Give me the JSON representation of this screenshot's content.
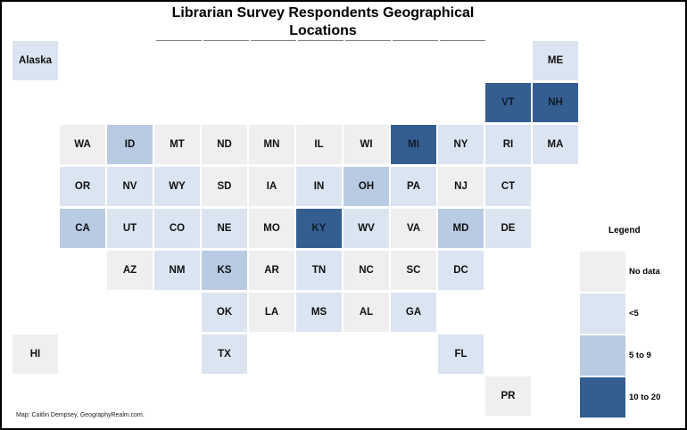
{
  "title": "Librarian Survey Respondents Geographical Locations",
  "title_line1": "Librarian Survey Respondents Geographical",
  "title_line2": "Locations",
  "credit": "Map: Caitlin Dempsey, GeographyRealm.com.",
  "legend": {
    "title": "Legend",
    "items": [
      {
        "label": "No data",
        "color": "#efefef"
      },
      {
        "label": "<5",
        "color": "#dbe4f1"
      },
      {
        "label": "5 to 9",
        "color": "#b8cbe3"
      },
      {
        "label": "10 to 20",
        "color": "#355e90"
      }
    ]
  },
  "chart_data": {
    "type": "heatmap",
    "title": "Librarian Survey Respondents Geographical Locations",
    "subtype": "US tile grid map",
    "categories": [
      "No data",
      "<5",
      "5 to 9",
      "10 to 20"
    ],
    "tiles": [
      {
        "state": "Alaska",
        "row": 0,
        "col": 0,
        "category": "<5"
      },
      {
        "state": "ME",
        "row": 0,
        "col": 11,
        "category": "<5"
      },
      {
        "state": "VT",
        "row": 1,
        "col": 10,
        "category": "10 to 20"
      },
      {
        "state": "NH",
        "row": 1,
        "col": 11,
        "category": "10 to 20"
      },
      {
        "state": "WA",
        "row": 2,
        "col": 1,
        "category": "No data"
      },
      {
        "state": "ID",
        "row": 2,
        "col": 2,
        "category": "5 to 9"
      },
      {
        "state": "MT",
        "row": 2,
        "col": 3,
        "category": "No data"
      },
      {
        "state": "ND",
        "row": 2,
        "col": 4,
        "category": "No data"
      },
      {
        "state": "MN",
        "row": 2,
        "col": 5,
        "category": "No data"
      },
      {
        "state": "IL",
        "row": 2,
        "col": 6,
        "category": "No data"
      },
      {
        "state": "WI",
        "row": 2,
        "col": 7,
        "category": "No data"
      },
      {
        "state": "MI",
        "row": 2,
        "col": 8,
        "category": "10 to 20"
      },
      {
        "state": "NY",
        "row": 2,
        "col": 9,
        "category": "<5"
      },
      {
        "state": "RI",
        "row": 2,
        "col": 10,
        "category": "<5"
      },
      {
        "state": "MA",
        "row": 2,
        "col": 11,
        "category": "<5"
      },
      {
        "state": "OR",
        "row": 3,
        "col": 1,
        "category": "<5"
      },
      {
        "state": "NV",
        "row": 3,
        "col": 2,
        "category": "<5"
      },
      {
        "state": "WY",
        "row": 3,
        "col": 3,
        "category": "<5"
      },
      {
        "state": "SD",
        "row": 3,
        "col": 4,
        "category": "No data"
      },
      {
        "state": "IA",
        "row": 3,
        "col": 5,
        "category": "No data"
      },
      {
        "state": "IN",
        "row": 3,
        "col": 6,
        "category": "<5"
      },
      {
        "state": "OH",
        "row": 3,
        "col": 7,
        "category": "5 to 9"
      },
      {
        "state": "PA",
        "row": 3,
        "col": 8,
        "category": "<5"
      },
      {
        "state": "NJ",
        "row": 3,
        "col": 9,
        "category": "No data"
      },
      {
        "state": "CT",
        "row": 3,
        "col": 10,
        "category": "<5"
      },
      {
        "state": "CA",
        "row": 4,
        "col": 1,
        "category": "5 to 9"
      },
      {
        "state": "UT",
        "row": 4,
        "col": 2,
        "category": "<5"
      },
      {
        "state": "CO",
        "row": 4,
        "col": 3,
        "category": "<5"
      },
      {
        "state": "NE",
        "row": 4,
        "col": 4,
        "category": "<5"
      },
      {
        "state": "MO",
        "row": 4,
        "col": 5,
        "category": "No data"
      },
      {
        "state": "KY",
        "row": 4,
        "col": 6,
        "category": "10 to 20"
      },
      {
        "state": "WV",
        "row": 4,
        "col": 7,
        "category": "<5"
      },
      {
        "state": "VA",
        "row": 4,
        "col": 8,
        "category": "No data"
      },
      {
        "state": "MD",
        "row": 4,
        "col": 9,
        "category": "5 to 9"
      },
      {
        "state": "DE",
        "row": 4,
        "col": 10,
        "category": "<5"
      },
      {
        "state": "AZ",
        "row": 5,
        "col": 2,
        "category": "No data"
      },
      {
        "state": "NM",
        "row": 5,
        "col": 3,
        "category": "<5"
      },
      {
        "state": "KS",
        "row": 5,
        "col": 4,
        "category": "5 to 9"
      },
      {
        "state": "AR",
        "row": 5,
        "col": 5,
        "category": "No data"
      },
      {
        "state": "TN",
        "row": 5,
        "col": 6,
        "category": "<5"
      },
      {
        "state": "NC",
        "row": 5,
        "col": 7,
        "category": "No data"
      },
      {
        "state": "SC",
        "row": 5,
        "col": 8,
        "category": "No data"
      },
      {
        "state": "DC",
        "row": 5,
        "col": 9,
        "category": "<5"
      },
      {
        "state": "OK",
        "row": 6,
        "col": 4,
        "category": "<5"
      },
      {
        "state": "LA",
        "row": 6,
        "col": 5,
        "category": "No data"
      },
      {
        "state": "MS",
        "row": 6,
        "col": 6,
        "category": "<5"
      },
      {
        "state": "AL",
        "row": 6,
        "col": 7,
        "category": "No data"
      },
      {
        "state": "GA",
        "row": 6,
        "col": 8,
        "category": "<5"
      },
      {
        "state": "HI",
        "row": 7,
        "col": 0,
        "category": "No data"
      },
      {
        "state": "TX",
        "row": 7,
        "col": 4,
        "category": "<5"
      },
      {
        "state": "FL",
        "row": 7,
        "col": 9,
        "category": "<5"
      },
      {
        "state": "PR",
        "row": 8,
        "col": 10,
        "category": "No data"
      }
    ],
    "legend_position": "right"
  }
}
